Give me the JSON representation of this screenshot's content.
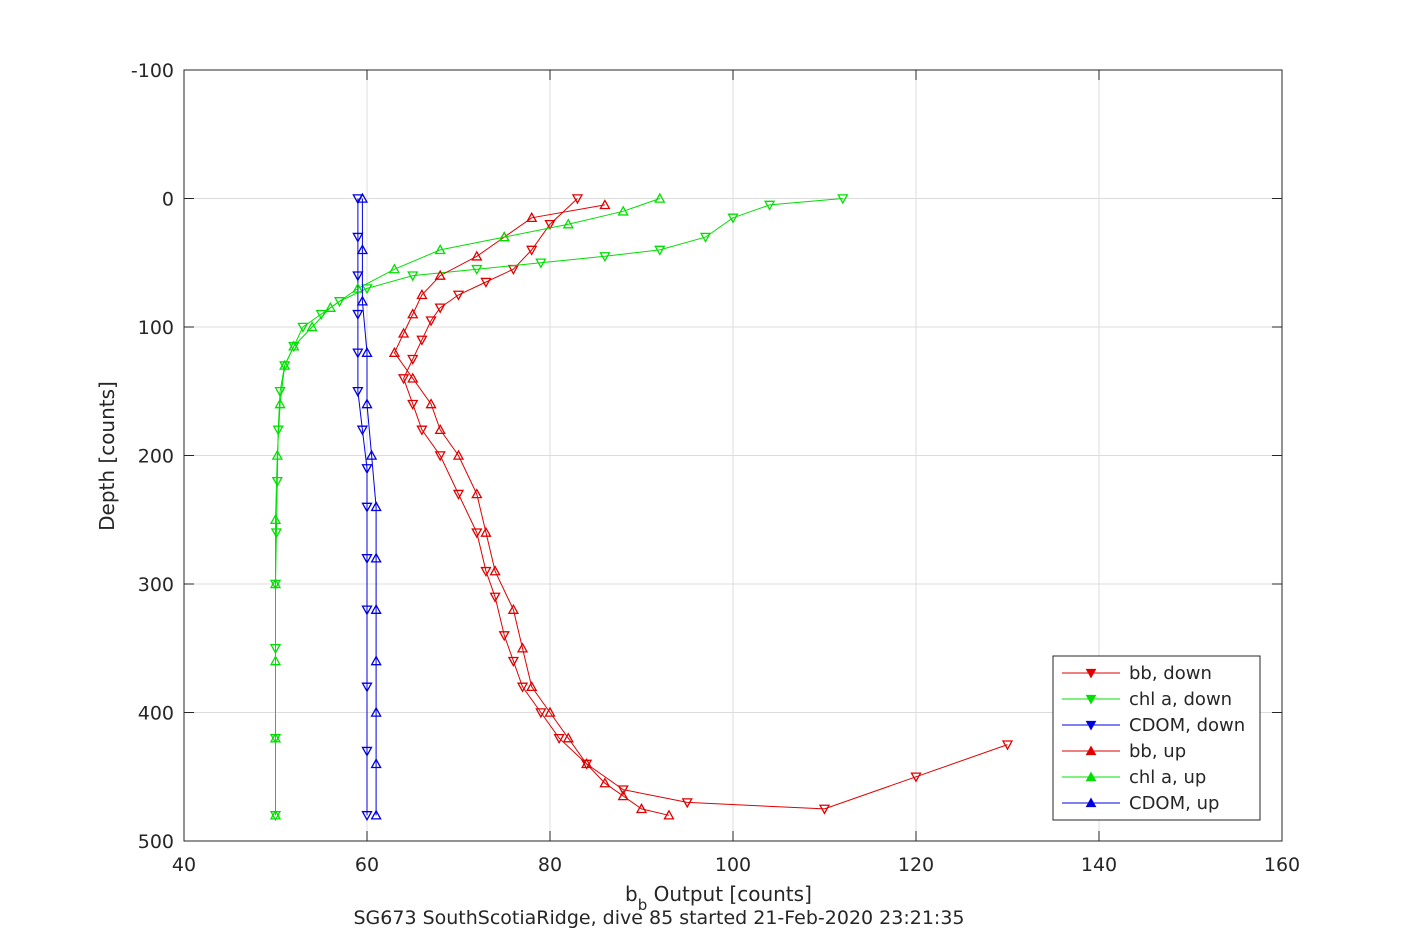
{
  "chart_data": {
    "type": "scatter",
    "title": "SG673 SouthScotiaRidge, dive 85 started 21-Feb-2020 23:21:35",
    "xlabel_main": "b",
    "xlabel_sub": "b",
    "xlabel_rest": " Output [counts]",
    "ylabel": "Depth [counts]",
    "xlim": [
      40,
      160
    ],
    "ylim": [
      -100,
      500
    ],
    "y_reversed": true,
    "grid": true,
    "legend_position": "bottom-right",
    "x_ticks": [
      "40",
      "60",
      "80",
      "100",
      "120",
      "140",
      "160"
    ],
    "y_ticks": [
      "-100",
      "0",
      "100",
      "200",
      "300",
      "400",
      "500"
    ],
    "colors": {
      "bb": "#e00000",
      "chl": "#00e000",
      "cdom": "#0000e0"
    },
    "series": [
      {
        "name": "bb, down",
        "color": "#e00000",
        "marker": "triangle-down",
        "x": [
          83,
          80,
          78,
          76,
          73,
          70,
          68,
          67,
          66,
          65,
          64,
          65,
          66,
          68,
          70,
          72,
          73,
          74,
          75,
          76,
          77,
          79,
          81,
          84,
          88,
          95,
          110,
          120,
          130
        ],
        "y": [
          0,
          20,
          40,
          55,
          65,
          75,
          85,
          95,
          110,
          125,
          140,
          160,
          180,
          200,
          230,
          260,
          290,
          310,
          340,
          360,
          380,
          400,
          420,
          440,
          460,
          470,
          475,
          450,
          425
        ]
      },
      {
        "name": "chl a, down",
        "color": "#00e000",
        "marker": "triangle-down",
        "x": [
          112,
          104,
          100,
          97,
          92,
          86,
          79,
          72,
          65,
          60,
          57,
          55,
          53,
          52,
          51,
          50.5,
          50.3,
          50.2,
          50.1,
          50,
          50,
          50,
          50
        ],
        "y": [
          0,
          5,
          15,
          30,
          40,
          45,
          50,
          55,
          60,
          70,
          80,
          90,
          100,
          115,
          130,
          150,
          180,
          220,
          260,
          300,
          350,
          420,
          480
        ]
      },
      {
        "name": "CDOM, down",
        "color": "#0000e0",
        "marker": "triangle-down",
        "x": [
          59,
          59,
          59,
          59,
          59,
          59,
          59.5,
          60,
          60,
          60,
          60,
          60,
          60,
          60
        ],
        "y": [
          0,
          30,
          60,
          90,
          120,
          150,
          180,
          210,
          240,
          280,
          320,
          380,
          430,
          480
        ]
      },
      {
        "name": "bb, up",
        "color": "#e00000",
        "marker": "triangle-up",
        "x": [
          86,
          78,
          75,
          72,
          68,
          66,
          65,
          64,
          63,
          65,
          67,
          68,
          70,
          72,
          73,
          74,
          76,
          77,
          78,
          80,
          82,
          84,
          86,
          88,
          90,
          93
        ],
        "y": [
          5,
          15,
          30,
          45,
          60,
          75,
          90,
          105,
          120,
          140,
          160,
          180,
          200,
          230,
          260,
          290,
          320,
          350,
          380,
          400,
          420,
          440,
          455,
          465,
          475,
          480
        ]
      },
      {
        "name": "chl a, up",
        "color": "#00e000",
        "marker": "triangle-up",
        "x": [
          92,
          88,
          82,
          75,
          68,
          63,
          59,
          56,
          54,
          52,
          51,
          50.5,
          50.2,
          50,
          50,
          50,
          50,
          50
        ],
        "y": [
          0,
          10,
          20,
          30,
          40,
          55,
          70,
          85,
          100,
          115,
          130,
          160,
          200,
          250,
          300,
          360,
          420,
          480
        ]
      },
      {
        "name": "CDOM, up",
        "color": "#0000e0",
        "marker": "triangle-up",
        "x": [
          59.5,
          59.5,
          59.5,
          60,
          60,
          60.5,
          61,
          61,
          61,
          61,
          61,
          61,
          61
        ],
        "y": [
          0,
          40,
          80,
          120,
          160,
          200,
          240,
          280,
          320,
          360,
          400,
          440,
          480
        ]
      }
    ]
  }
}
